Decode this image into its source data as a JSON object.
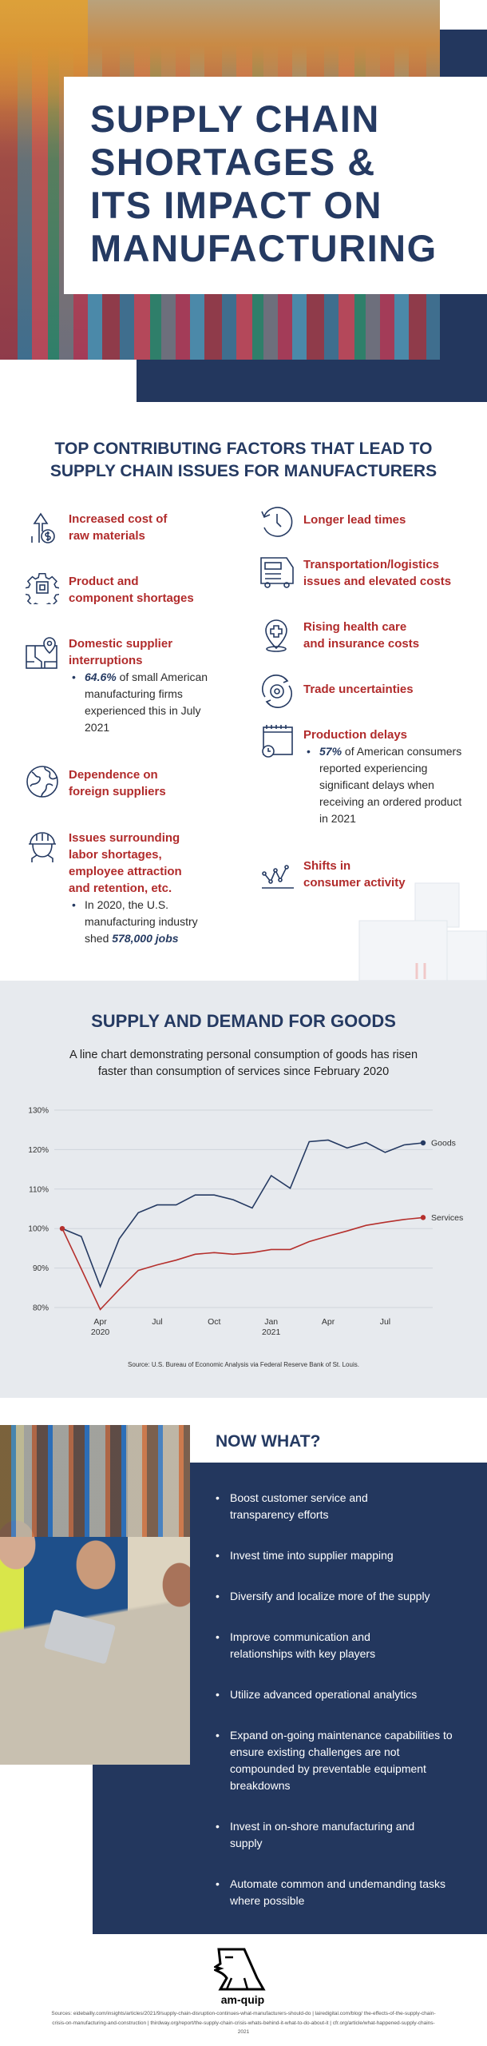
{
  "colors": {
    "navy": "#23375e",
    "red": "#b12b2b",
    "goods": "#253a62",
    "services": "#b5302d",
    "chart_bg": "#e7eaee"
  },
  "header": {
    "title_lines": [
      "SUPPLY CHAIN",
      "SHORTAGES &",
      "ITS IMPACT ON",
      "MANUFACTURING"
    ]
  },
  "factors": {
    "title_lines": [
      "TOP CONTRIBUTING FACTORS THAT LEAD TO",
      "SUPPLY CHAIN ISSUES FOR MANUFACTURERS"
    ],
    "left": [
      {
        "icon": "price-up-dollar-icon",
        "lines": [
          "Increased cost of",
          "raw materials"
        ]
      },
      {
        "icon": "chip-gear-icon",
        "lines": [
          "Product and",
          "component shortages"
        ]
      },
      {
        "icon": "map-pin-icon",
        "lines": [
          "Domestic supplier",
          "interruptions"
        ],
        "bullet": {
          "emph": "64.6%",
          "rest": " of small American manufacturing firms experienced this in July 2021"
        }
      },
      {
        "icon": "globe-icon",
        "lines": [
          "Dependence on",
          "foreign suppliers"
        ]
      },
      {
        "icon": "worker-helmet-icon",
        "lines": [
          "Issues surrounding",
          "labor shortages,",
          "employee attraction",
          "and retention, etc."
        ],
        "bullet": {
          "rest": "In 2020, the U.S. manufacturing industry shed ",
          "emph": "578,000 jobs"
        }
      }
    ],
    "right": [
      {
        "icon": "clock-history-icon",
        "lines": [
          "Longer lead times"
        ]
      },
      {
        "icon": "truck-icon",
        "lines": [
          "Transportation/logistics",
          "issues and elevated costs"
        ]
      },
      {
        "icon": "health-pin-icon",
        "lines": [
          "Rising health care",
          "and insurance costs"
        ]
      },
      {
        "icon": "gear-cycle-icon",
        "lines": [
          "Trade uncertainties"
        ]
      },
      {
        "icon": "calendar-clock-icon",
        "lines": [
          "Production delays"
        ],
        "bullet": {
          "emph": "57%",
          "rest": " of American consumers reported experiencing significant delays when receiving an ordered product in 2021"
        }
      },
      {
        "icon": "trend-line-icon",
        "lines": [
          "Shifts in",
          "consumer activity"
        ]
      }
    ]
  },
  "chart_section": {
    "title": "SUPPLY AND DEMAND FOR GOODS",
    "subtitle_lines": [
      "A line chart demonstrating personal consumption of goods has risen",
      "faster than consumption of services since February 2020"
    ],
    "source": "Source: U.S. Bureau of Economic Analysis via Federal Reserve Bank of St. Louis."
  },
  "chart_data": {
    "type": "line",
    "x": [
      "2020-02",
      "2020-03",
      "2020-04",
      "2020-05",
      "2020-06",
      "2020-07",
      "2020-08",
      "2020-09",
      "2020-10",
      "2020-11",
      "2020-12",
      "2021-01",
      "2021-02",
      "2021-03",
      "2021-04",
      "2021-05",
      "2021-06",
      "2021-07",
      "2021-08",
      "2021-09"
    ],
    "series": [
      {
        "name": "Goods",
        "values": [
          100,
          98,
          85.3,
          97.4,
          104,
          106,
          106,
          108.5,
          108.5,
          107.3,
          105.2,
          113.4,
          110.2,
          122,
          122.4,
          120.4,
          121.8,
          119.3,
          121.2,
          121.7
        ]
      },
      {
        "name": "Services",
        "values": [
          100,
          89.8,
          79.5,
          84.6,
          89.4,
          90.8,
          92,
          93.5,
          93.9,
          93.5,
          93.9,
          94.7,
          94.7,
          96.7,
          98.1,
          99.4,
          100.8,
          101.6,
          102.3,
          102.8
        ]
      }
    ],
    "ylim": [
      80,
      130
    ],
    "yticks": [
      "80%",
      "90%",
      "100%",
      "110%",
      "120%",
      "130%"
    ],
    "xticks": [
      {
        "month": "2020-04",
        "label": "Apr",
        "sub": "2020"
      },
      {
        "month": "2020-07",
        "label": "Jul",
        "sub": ""
      },
      {
        "month": "2020-10",
        "label": "Oct",
        "sub": ""
      },
      {
        "month": "2021-01",
        "label": "Jan",
        "sub": "2021"
      },
      {
        "month": "2021-04",
        "label": "Apr",
        "sub": ""
      },
      {
        "month": "2021-07",
        "label": "Jul",
        "sub": ""
      }
    ],
    "grid": true,
    "legend": "end-of-line labels"
  },
  "now_what": {
    "title": "NOW WHAT?",
    "items": [
      "Boost customer service and transparency efforts",
      "Invest time into supplier mapping",
      "Diversify and localize more of the supply",
      "Improve communication and relationships with key players",
      "Utilize advanced operational analytics",
      "Expand on-going maintenance capabilities to ensure existing challenges are not compounded by preventable equipment breakdowns",
      "Invest in on-shore manufacturing and supply",
      "Automate common and undemanding tasks where possible"
    ]
  },
  "footer": {
    "logo_text": "am-quip",
    "sources": "Sources: eidebailly.com/insights/articles/2021/9/supply-chain-disruption-continues-what-manufacturers-should-do | lairedigital.com/blog/ the-effects-of-the-supply-chain-crisis-on-manufacturing-and-construction | thirdway.org/report/the-supply-chain-crisis-whats-behind-it-what-to-do-about-it | cfr.org/article/what-happened-supply-chains-2021"
  }
}
